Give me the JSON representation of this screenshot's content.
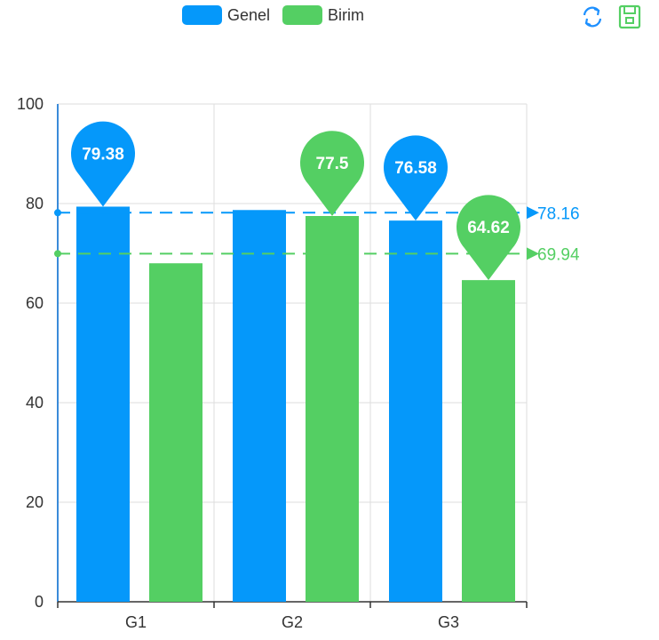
{
  "legend": [
    {
      "name": "Genel",
      "color": "#0598fa"
    },
    {
      "name": "Birim",
      "color": "#54cf63"
    }
  ],
  "toolbox": [
    {
      "icon": "refresh-icon",
      "color": "#1e90ff"
    },
    {
      "icon": "save-icon",
      "color": "#54cf63"
    }
  ],
  "chart_data": {
    "type": "bar",
    "categories": [
      "G1",
      "G2",
      "G3"
    ],
    "series": [
      {
        "name": "Genel",
        "color": "#0598fa",
        "values": [
          79.38,
          78.7,
          76.58
        ],
        "max_pin": "79.38",
        "min_pin": "76.58",
        "average": "78.16"
      },
      {
        "name": "Birim",
        "color": "#54cf63",
        "values": [
          68.0,
          77.5,
          64.62
        ],
        "max_pin": "77.5",
        "min_pin": "64.62",
        "average": "69.94"
      }
    ],
    "ylim": [
      0,
      100
    ],
    "yticks": [
      "0",
      "20",
      "40",
      "60",
      "80",
      "100"
    ],
    "grid": true,
    "legend_position": "top-center"
  }
}
